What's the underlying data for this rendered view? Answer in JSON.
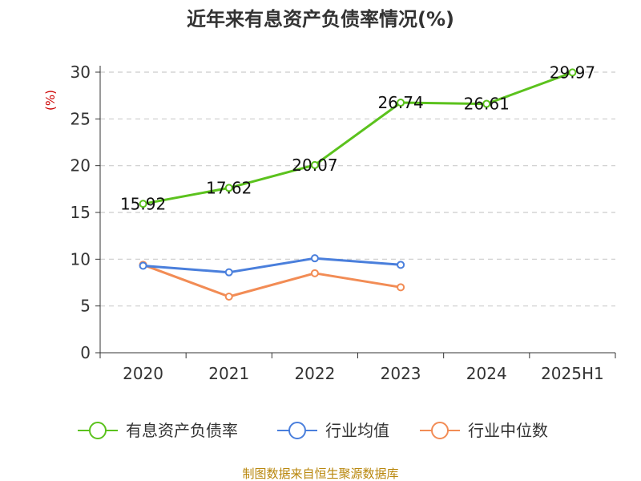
{
  "chart_data": {
    "type": "line",
    "title": "近年来有息资产负债率情况(%)",
    "ylabel": "(%)",
    "xlabel": "",
    "categories": [
      "2020",
      "2021",
      "2022",
      "2023",
      "2024",
      "2025H1"
    ],
    "ylim": [
      0,
      30
    ],
    "yticks": [
      0,
      5,
      10,
      15,
      20,
      25,
      30
    ],
    "grid": true,
    "legend_position": "bottom",
    "series": [
      {
        "name": "有息资产负债率",
        "color": "#5bc21d",
        "values": [
          15.92,
          17.62,
          20.07,
          26.74,
          26.61,
          29.97
        ],
        "labels": [
          "15.92",
          "17.62",
          "20.07",
          "26.74",
          "26.61",
          "29.97"
        ]
      },
      {
        "name": "行业均值",
        "color": "#4a7fdc",
        "values": [
          9.3,
          8.6,
          10.1,
          9.4,
          null,
          null
        ]
      },
      {
        "name": "行业中位数",
        "color": "#f28c55",
        "values": [
          9.4,
          6.0,
          8.5,
          7.0,
          null,
          null
        ]
      }
    ]
  },
  "source": "制图数据来自恒生聚源数据库"
}
